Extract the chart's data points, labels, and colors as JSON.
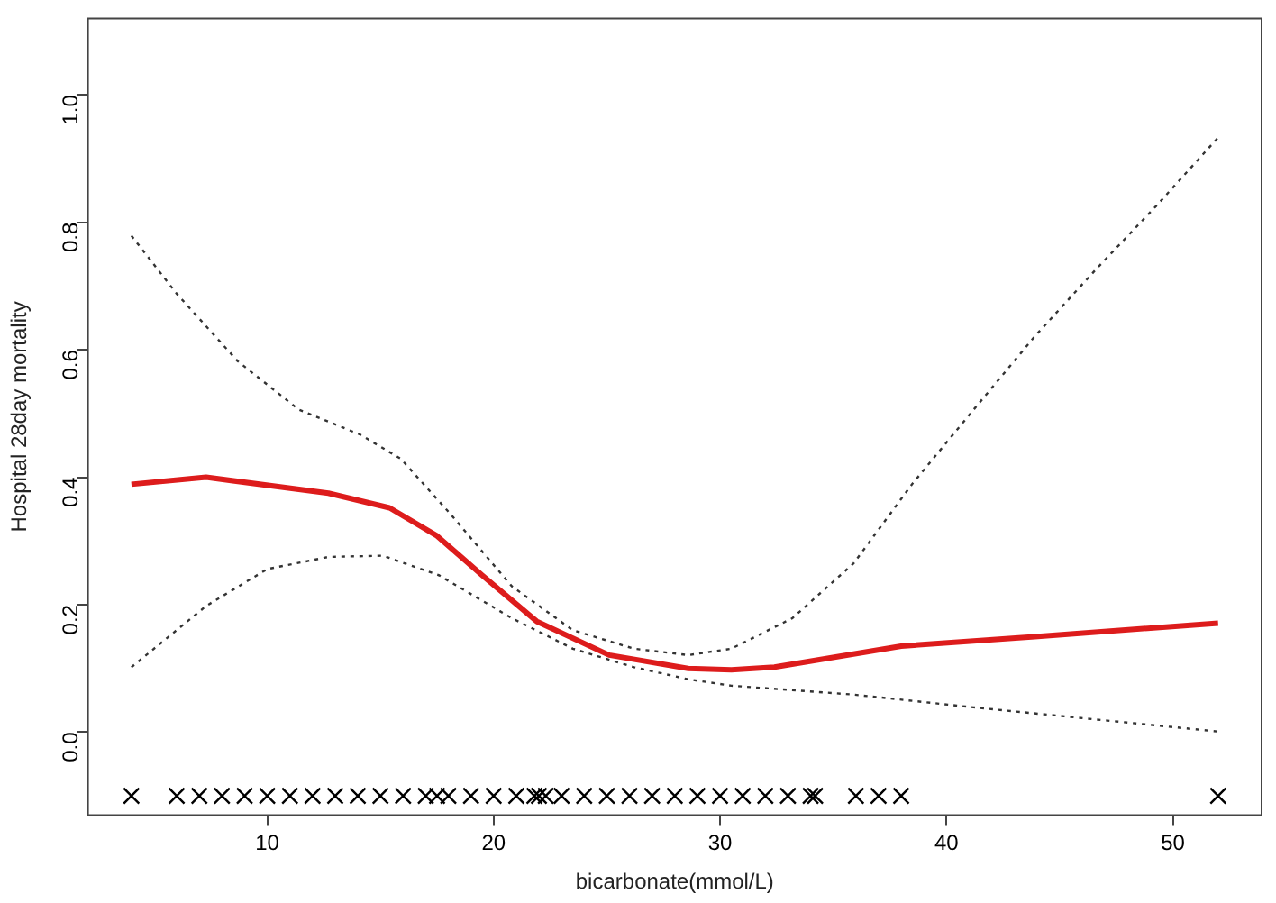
{
  "chart_data": {
    "type": "line",
    "xlabel": "bicarbonate(mmol/L)",
    "ylabel": "Hospital 28day mortality",
    "xlim": [
      2.08,
      53.92
    ],
    "xticks": [
      10,
      20,
      30,
      40,
      50
    ],
    "ylim": [
      -0.13,
      1.12
    ],
    "yticks": [
      {
        "value": 0,
        "label": "0.0"
      },
      0.2,
      0.4,
      0.6,
      0.8,
      {
        "value": 1,
        "label": "1.0"
      }
    ],
    "grid": false,
    "legend": false,
    "series": [
      {
        "color": "#dd1c1c",
        "line_style": "solid",
        "marker": "none",
        "x": [
          4.0,
          7.3,
          12.7,
          15.4,
          17.5,
          19.5,
          21.9,
          25.1,
          28.6,
          30.5,
          32.4,
          38.0,
          43.9,
          52.0
        ],
        "values": [
          0.389,
          0.4,
          0.375,
          0.352,
          0.308,
          0.246,
          0.174,
          0.121,
          0.1,
          0.098,
          0.102,
          0.135,
          0.15,
          0.171
        ]
      },
      {
        "color": "#333333",
        "line_style": "dotted",
        "marker": "none",
        "x": [
          4.0,
          6.0,
          8.7,
          11.4,
          14.1,
          15.9,
          18.1,
          20.8,
          23.5,
          26.2,
          28.6,
          30.5,
          33.2,
          35.9,
          38.5,
          41.2,
          43.9,
          46.6,
          49.3,
          52.0
        ],
        "values": [
          0.779,
          0.688,
          0.582,
          0.506,
          0.467,
          0.429,
          0.342,
          0.229,
          0.16,
          0.131,
          0.121,
          0.131,
          0.179,
          0.265,
          0.39,
          0.506,
          0.621,
          0.726,
          0.827,
          0.933
        ]
      },
      {
        "color": "#333333",
        "line_style": "dotted",
        "marker": "none",
        "x": [
          4.0,
          7.3,
          10.0,
          12.7,
          15.1,
          17.6,
          20.8,
          23.5,
          26.2,
          28.6,
          30.5,
          35.9,
          41.2,
          46.6,
          52.0
        ],
        "values": [
          0.102,
          0.198,
          0.256,
          0.275,
          0.277,
          0.246,
          0.179,
          0.131,
          0.102,
          0.083,
          0.073,
          0.059,
          0.039,
          0.02,
          0.001
        ]
      },
      {
        "type": "scatter",
        "color": "#000000",
        "marker": "cross",
        "x": [
          4,
          6,
          7,
          8,
          9,
          10,
          11,
          12,
          13,
          14,
          15,
          16,
          17,
          17.5,
          18,
          19,
          20,
          21,
          21.8,
          22,
          22.3,
          23,
          24,
          25,
          26,
          27,
          28,
          29,
          30,
          31,
          32,
          33,
          34,
          34.2,
          36,
          37,
          38,
          52
        ],
        "values": [
          -0.1,
          -0.1,
          -0.1,
          -0.1,
          -0.1,
          -0.1,
          -0.1,
          -0.1,
          -0.1,
          -0.1,
          -0.1,
          -0.1,
          -0.1,
          -0.1,
          -0.1,
          -0.1,
          -0.1,
          -0.1,
          -0.1,
          -0.1,
          -0.1,
          -0.1,
          -0.1,
          -0.1,
          -0.1,
          -0.1,
          -0.1,
          -0.1,
          -0.1,
          -0.1,
          -0.1,
          -0.1,
          -0.1,
          -0.1,
          -0.1,
          -0.1,
          -0.1,
          -0.1
        ]
      }
    ]
  }
}
